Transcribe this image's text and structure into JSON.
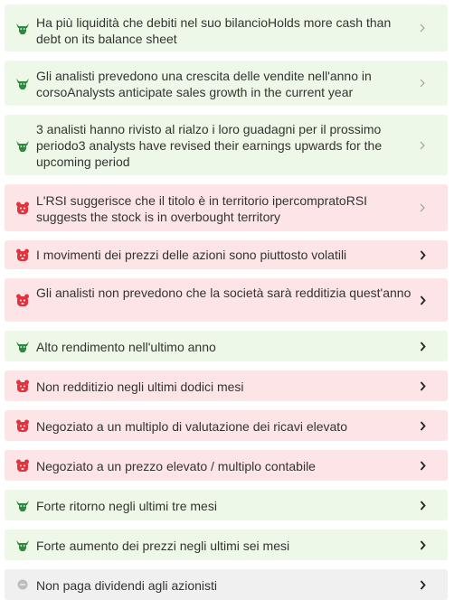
{
  "colors": {
    "bull_bg": "#eef8e8",
    "bear_bg": "#fde5e7",
    "neutral_bg": "#f0f0f0",
    "bull_icon": "#2e8b3e",
    "bear_icon": "#e0343f",
    "neutral_icon": "#bdbdbd"
  },
  "items": [
    {
      "type": "bull",
      "icon": "bull-icon",
      "text": "Ha più liquidità che debiti nel suo bilancioHolds more cash than debt on its balance sheet"
    },
    {
      "type": "bull",
      "icon": "bull-icon",
      "text": "Gli analisti prevedono una crescita delle vendite nell'anno in corsoAnalysts anticipate sales growth in the current year"
    },
    {
      "type": "bull",
      "icon": "bull-icon",
      "text": "3 analisti hanno rivisto al rialzo i loro guadagni per il prossimo periodo3 analysts have revised their earnings upwards for the upcoming period"
    },
    {
      "type": "bear",
      "icon": "bear-icon",
      "text": "L'RSI suggerisce che il titolo è in territorio ipercompratoRSI suggests the stock is in overbought territory"
    },
    {
      "type": "bear",
      "icon": "bear-icon",
      "text": "I movimenti dei prezzi delle azioni sono piuttosto volatili"
    },
    {
      "type": "bear",
      "icon": "bear-icon",
      "text": "Gli analisti non prevedono che la società sarà redditizia quest'anno"
    },
    {
      "type": "bull",
      "icon": "bull-icon",
      "text": "Alto rendimento nell'ultimo anno"
    },
    {
      "type": "bear",
      "icon": "bear-icon",
      "text": "Non redditizio negli ultimi dodici mesi"
    },
    {
      "type": "bear",
      "icon": "bear-icon",
      "text": "Negoziato a un multiplo di valutazione dei ricavi elevato"
    },
    {
      "type": "bear",
      "icon": "bear-icon",
      "text": "Negoziato a un prezzo elevato / multiplo contabile"
    },
    {
      "type": "bull",
      "icon": "bull-icon",
      "text": "Forte ritorno negli ultimi tre mesi"
    },
    {
      "type": "bull",
      "icon": "bull-icon",
      "text": "Forte aumento dei prezzi negli ultimi sei mesi"
    },
    {
      "type": "neutral",
      "icon": "neutral-dot-icon",
      "text": "Non paga dividendi agli azionisti"
    }
  ]
}
